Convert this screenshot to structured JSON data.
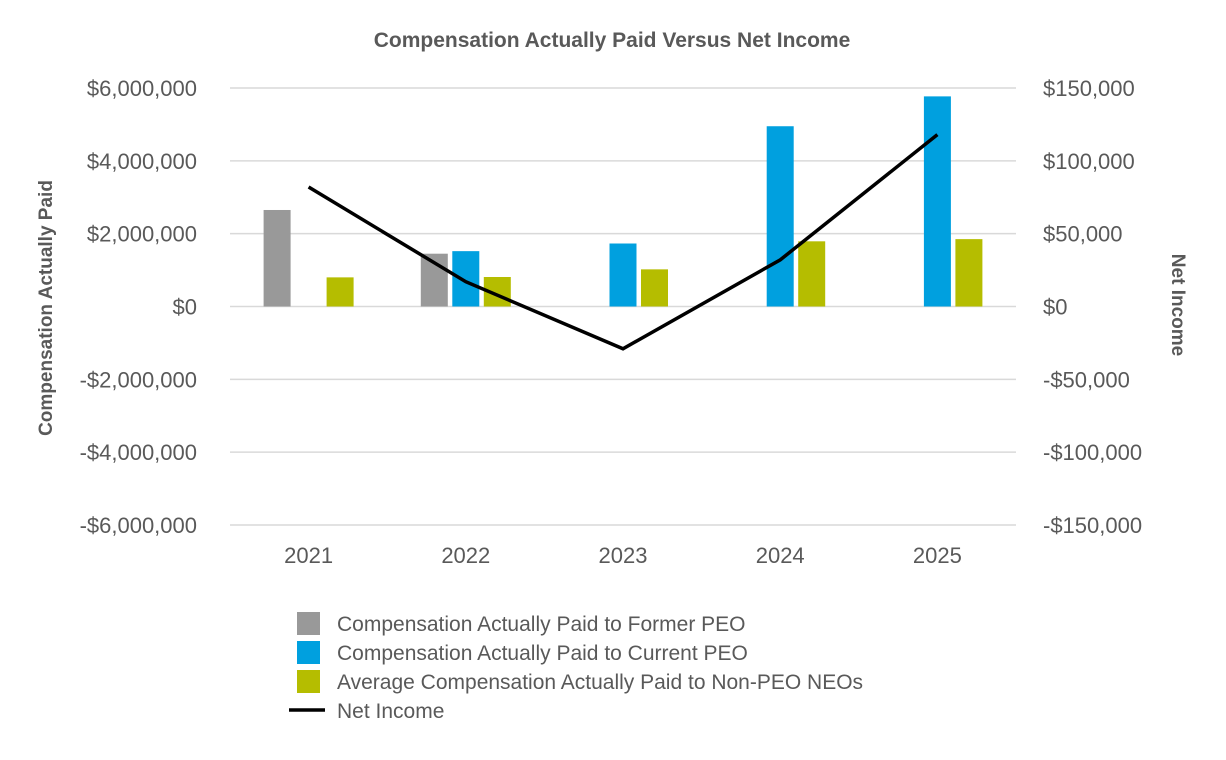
{
  "chart_data": {
    "type": "bar",
    "title": "Compensation Actually Paid Versus Net Income",
    "categories": [
      "2021",
      "2022",
      "2023",
      "2024",
      "2025"
    ],
    "ylabel": "Compensation Actually Paid",
    "y2label": "Net Income",
    "ylim": [
      -6000000,
      6000000
    ],
    "y2lim": [
      -150000,
      150000
    ],
    "yticks": [
      "$6,000,000",
      "$4,000,000",
      "$2,000,000",
      "$0",
      "-$2,000,000",
      "-$4,000,000",
      "-$6,000,000"
    ],
    "y2ticks": [
      "$150,000",
      "$100,000",
      "$50,000",
      "$0",
      "-$50,000",
      "-$100,000",
      "-$150,000"
    ],
    "series": [
      {
        "name": "Compensation Actually Paid to Former PEO",
        "type": "bar",
        "axis": "left",
        "color": "#999999",
        "values": [
          2650000,
          1450000,
          null,
          null,
          null
        ]
      },
      {
        "name": "Compensation Actually Paid to Current PEO",
        "type": "bar",
        "axis": "left",
        "color": "#00a0df",
        "values": [
          null,
          1520000,
          1730000,
          4950000,
          5770000
        ]
      },
      {
        "name": "Average Compensation Actually Paid to Non-PEO NEOs",
        "type": "bar",
        "axis": "left",
        "color": "#b5bd00",
        "values": [
          800000,
          810000,
          1020000,
          1790000,
          1850000
        ]
      },
      {
        "name": "Net Income",
        "type": "line",
        "axis": "right",
        "color": "#000000",
        "values": [
          82000,
          17000,
          -29000,
          32000,
          118000
        ]
      }
    ],
    "grid": true,
    "legend_position": "bottom"
  }
}
